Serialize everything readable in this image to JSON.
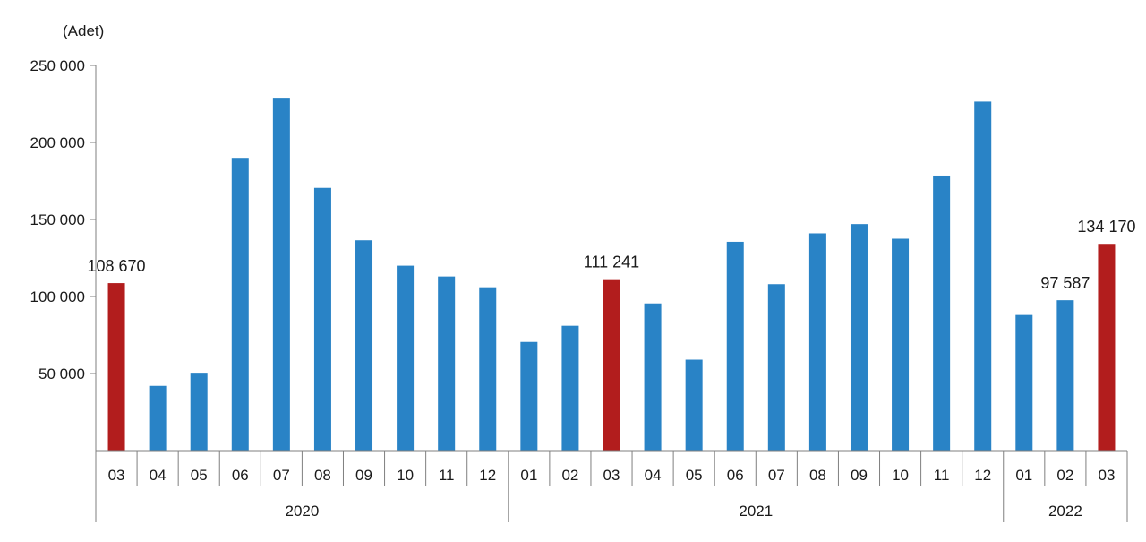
{
  "chart_data": {
    "type": "bar",
    "unit_label": "(Adet)",
    "ylim": [
      0,
      250000
    ],
    "yticks": [
      {
        "value": 50000,
        "label": "50 000"
      },
      {
        "value": 100000,
        "label": "100 000"
      },
      {
        "value": 150000,
        "label": "150 000"
      },
      {
        "value": 200000,
        "label": "200 000"
      },
      {
        "value": 250000,
        "label": "250 000"
      }
    ],
    "categories": [
      "03",
      "04",
      "05",
      "06",
      "07",
      "08",
      "09",
      "10",
      "11",
      "12",
      "01",
      "02",
      "03",
      "04",
      "05",
      "06",
      "07",
      "08",
      "09",
      "10",
      "11",
      "12",
      "01",
      "02",
      "03"
    ],
    "years": [
      {
        "label": "2020",
        "count": 10
      },
      {
        "label": "2021",
        "count": 12
      },
      {
        "label": "2022",
        "count": 3
      }
    ],
    "values": [
      108670,
      42000,
      50500,
      190000,
      229000,
      170500,
      136500,
      120000,
      113000,
      106000,
      70500,
      81000,
      111241,
      95500,
      59000,
      135500,
      108000,
      141000,
      147000,
      137500,
      178500,
      226500,
      88000,
      97587,
      134170
    ],
    "highlight": [
      true,
      false,
      false,
      false,
      false,
      false,
      false,
      false,
      false,
      false,
      false,
      false,
      true,
      false,
      false,
      false,
      false,
      false,
      false,
      false,
      false,
      false,
      false,
      false,
      true
    ],
    "data_labels": [
      {
        "index": 0,
        "text": "108 670"
      },
      {
        "index": 12,
        "text": "111 241"
      },
      {
        "index": 23,
        "text": "97 587"
      },
      {
        "index": 24,
        "text": "134 170"
      }
    ],
    "colors": {
      "bar": "#2983C6",
      "highlight": "#B21D1D",
      "axis": "#7f7f7f"
    },
    "grid": false,
    "legend": "none"
  }
}
